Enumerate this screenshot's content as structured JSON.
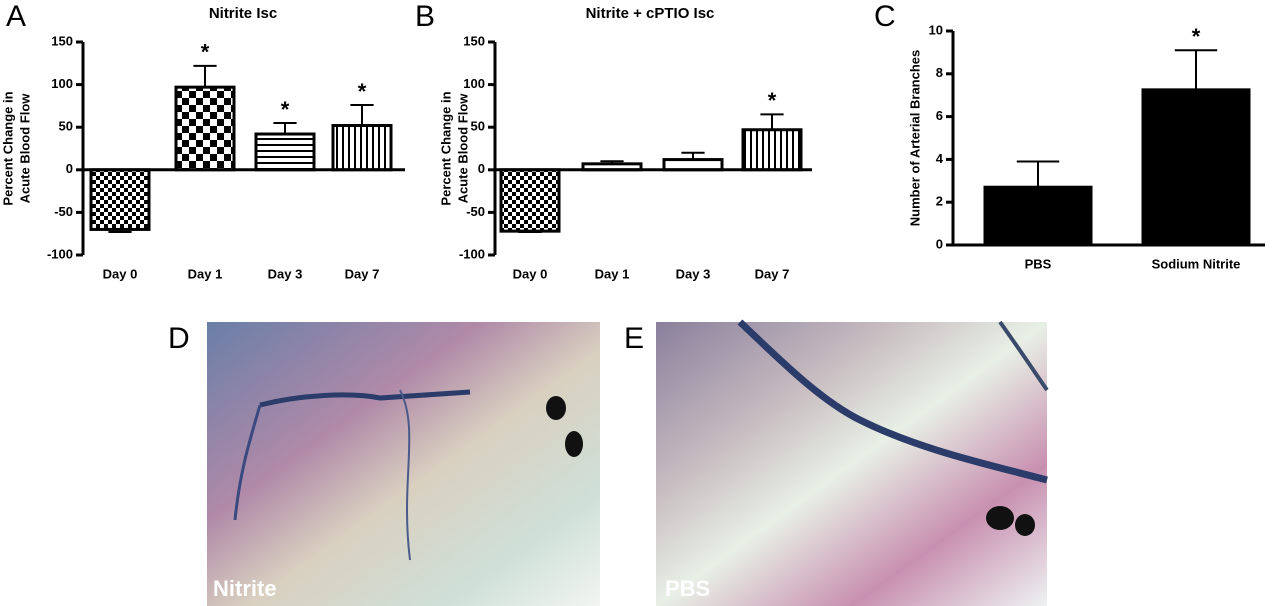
{
  "chart_data": [
    {
      "type": "bar",
      "panel": "A",
      "title": "Nitrite Isc",
      "ylabel": [
        "Percent Change in",
        "Acute Blood Flow"
      ],
      "categories": [
        "Day 0",
        "Day 1",
        "Day 3",
        "Day 7"
      ],
      "values": [
        -70,
        97,
        42,
        52
      ],
      "errors": [
        3,
        25,
        13,
        24
      ],
      "patterns": [
        "checker-small",
        "checker-large",
        "hlines",
        "vlines"
      ],
      "annotations": [
        null,
        "*",
        "*",
        "*"
      ],
      "color": "#000000",
      "ylim": [
        -100,
        150
      ],
      "yticks": [
        -100,
        -50,
        0,
        50,
        100,
        150
      ]
    },
    {
      "type": "bar",
      "panel": "B",
      "title": "Nitrite + cPTIO Isc",
      "ylabel": [
        "Percent Change in",
        "Acute Blood Flow"
      ],
      "categories": [
        "Day 0",
        "Day 1",
        "Day 3",
        "Day 7"
      ],
      "values": [
        -72,
        7,
        12,
        47
      ],
      "errors": [
        1,
        3,
        8,
        18
      ],
      "patterns": [
        "checker-small",
        "white",
        "white",
        "vlines"
      ],
      "annotations": [
        null,
        null,
        null,
        "*"
      ],
      "color": "#000000",
      "ylim": [
        -100,
        150
      ],
      "yticks": [
        -100,
        -50,
        0,
        50,
        100,
        150
      ]
    },
    {
      "type": "bar",
      "panel": "C",
      "ylabel": [
        "Number of Arterial Branches"
      ],
      "categories": [
        "PBS",
        "Sodium Nitrite"
      ],
      "values": [
        2.7,
        7.25
      ],
      "errors": [
        1.2,
        1.85
      ],
      "patterns": [
        "solid",
        "solid"
      ],
      "annotations": [
        null,
        "*"
      ],
      "color": "#000000",
      "ylim": [
        0,
        10
      ],
      "yticks": [
        0,
        2,
        4,
        6,
        8,
        10
      ]
    }
  ],
  "images": [
    {
      "panel": "D",
      "label": "Nitrite"
    },
    {
      "panel": "E",
      "label": "PBS"
    }
  ]
}
